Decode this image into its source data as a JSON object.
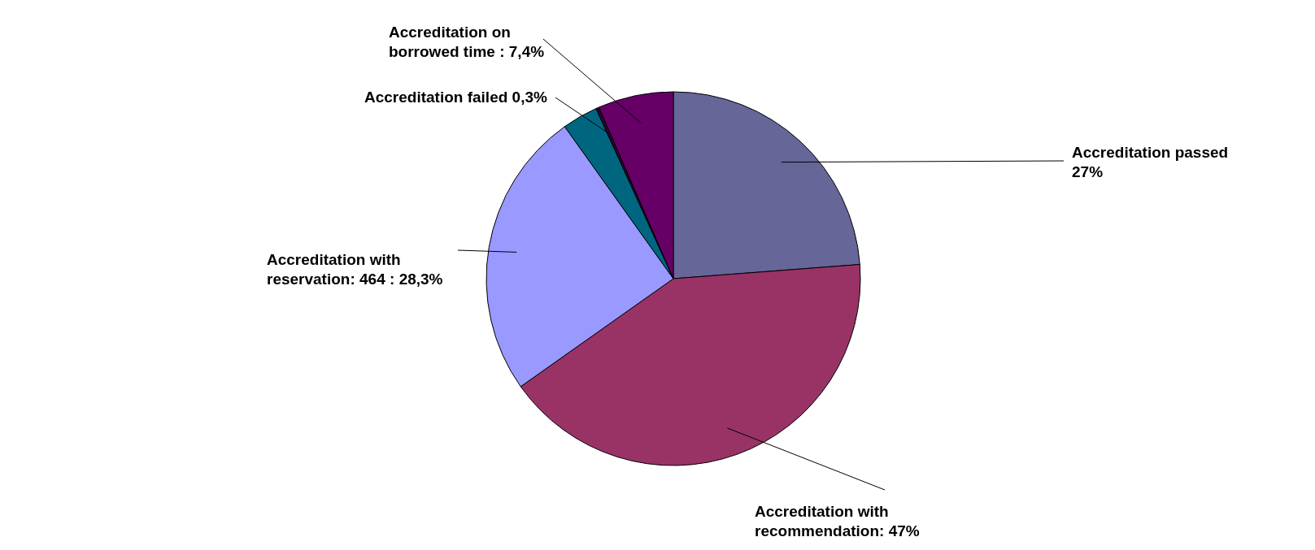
{
  "chart_data": {
    "type": "pie",
    "categories": [
      "Accreditation passed 27%",
      "Accreditation with recommendation: 47%",
      "Accreditation with reservation: 464 : 28,3%",
      null,
      "Accreditation failed 0,3%",
      "Accreditation on borrowed time : 7,4%"
    ],
    "values": [
      27,
      47,
      28.3,
      3.5,
      0.3,
      7.4
    ],
    "colors": [
      "#666699",
      "#993366",
      "#9999ff",
      "#006680",
      "#330033",
      "#660066"
    ]
  }
}
